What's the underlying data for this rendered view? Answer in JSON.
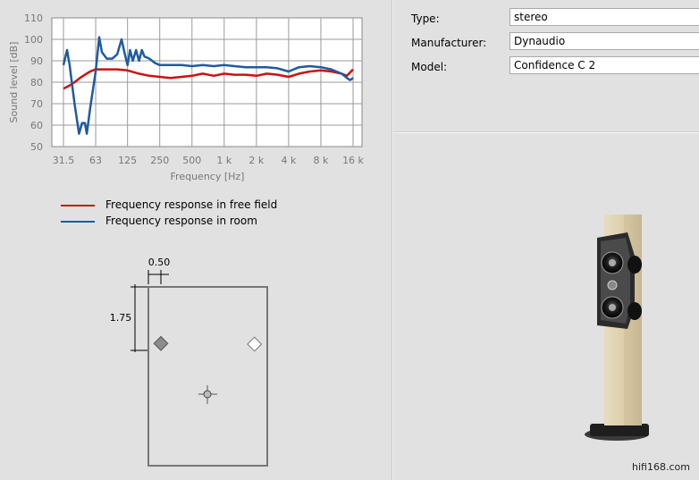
{
  "chart_data": {
    "type": "line",
    "xlabel": "Frequency [Hz]",
    "ylabel": "Sound level [dB]",
    "x_scale": "log",
    "x_ticks": [
      "31.5",
      "63",
      "125",
      "250",
      "500",
      "1 k",
      "2 k",
      "4 k",
      "8 k",
      "16 k"
    ],
    "x_tick_values": [
      31.5,
      63,
      125,
      250,
      500,
      1000,
      2000,
      4000,
      8000,
      16000
    ],
    "y_ticks": [
      "50",
      "60",
      "70",
      "80",
      "90",
      "100",
      "110"
    ],
    "ylim": [
      50,
      110
    ],
    "grid": true,
    "legend_position": "below",
    "series": [
      {
        "name": "Frequency response in free field",
        "color": "#cc1111",
        "points": [
          [
            31.5,
            77
          ],
          [
            36,
            78.5
          ],
          [
            40,
            80
          ],
          [
            45,
            82
          ],
          [
            50,
            83.5
          ],
          [
            56,
            85
          ],
          [
            63,
            86
          ],
          [
            80,
            86
          ],
          [
            100,
            86
          ],
          [
            125,
            85.5
          ],
          [
            160,
            84
          ],
          [
            200,
            83
          ],
          [
            250,
            82.5
          ],
          [
            315,
            82
          ],
          [
            400,
            82.5
          ],
          [
            500,
            83
          ],
          [
            630,
            84
          ],
          [
            800,
            83
          ],
          [
            1000,
            84
          ],
          [
            1250,
            83.5
          ],
          [
            1600,
            83.5
          ],
          [
            2000,
            83
          ],
          [
            2500,
            84
          ],
          [
            3150,
            83.5
          ],
          [
            4000,
            82.5
          ],
          [
            5000,
            84
          ],
          [
            6300,
            85
          ],
          [
            8000,
            85.5
          ],
          [
            10000,
            85
          ],
          [
            12500,
            84
          ],
          [
            14000,
            83
          ],
          [
            16000,
            86
          ]
        ]
      },
      {
        "name": "Frequency response in room",
        "color": "#1f5aa0",
        "points": [
          [
            31.5,
            88
          ],
          [
            34,
            95
          ],
          [
            36,
            88
          ],
          [
            40,
            70
          ],
          [
            44,
            56
          ],
          [
            47,
            61
          ],
          [
            50,
            61
          ],
          [
            52,
            56
          ],
          [
            56,
            68
          ],
          [
            63,
            85
          ],
          [
            68,
            101
          ],
          [
            72,
            94
          ],
          [
            80,
            91
          ],
          [
            90,
            91
          ],
          [
            100,
            93
          ],
          [
            110,
            100
          ],
          [
            118,
            93
          ],
          [
            125,
            88
          ],
          [
            132,
            95
          ],
          [
            140,
            90
          ],
          [
            150,
            95
          ],
          [
            160,
            90
          ],
          [
            170,
            95
          ],
          [
            180,
            92
          ],
          [
            200,
            91
          ],
          [
            225,
            89
          ],
          [
            250,
            88
          ],
          [
            315,
            88
          ],
          [
            400,
            88
          ],
          [
            500,
            87.5
          ],
          [
            630,
            88
          ],
          [
            800,
            87.5
          ],
          [
            1000,
            88
          ],
          [
            1250,
            87.5
          ],
          [
            1600,
            87
          ],
          [
            2000,
            87
          ],
          [
            2500,
            87
          ],
          [
            3150,
            86.5
          ],
          [
            4000,
            85
          ],
          [
            5000,
            87
          ],
          [
            6300,
            87.5
          ],
          [
            8000,
            87
          ],
          [
            10000,
            86
          ],
          [
            12500,
            84
          ],
          [
            14000,
            82
          ],
          [
            15000,
            81
          ],
          [
            16000,
            82
          ]
        ]
      }
    ]
  },
  "room": {
    "width_label": "0.50",
    "distance_label": "1.75"
  },
  "info": {
    "type_label": "Type:",
    "type_value": "stereo",
    "manufacturer_label": "Manufacturer:",
    "manufacturer_value": "Dynaudio",
    "model_label": "Model:",
    "model_value": "Confidence C 2"
  },
  "credit": "hifi168.com"
}
